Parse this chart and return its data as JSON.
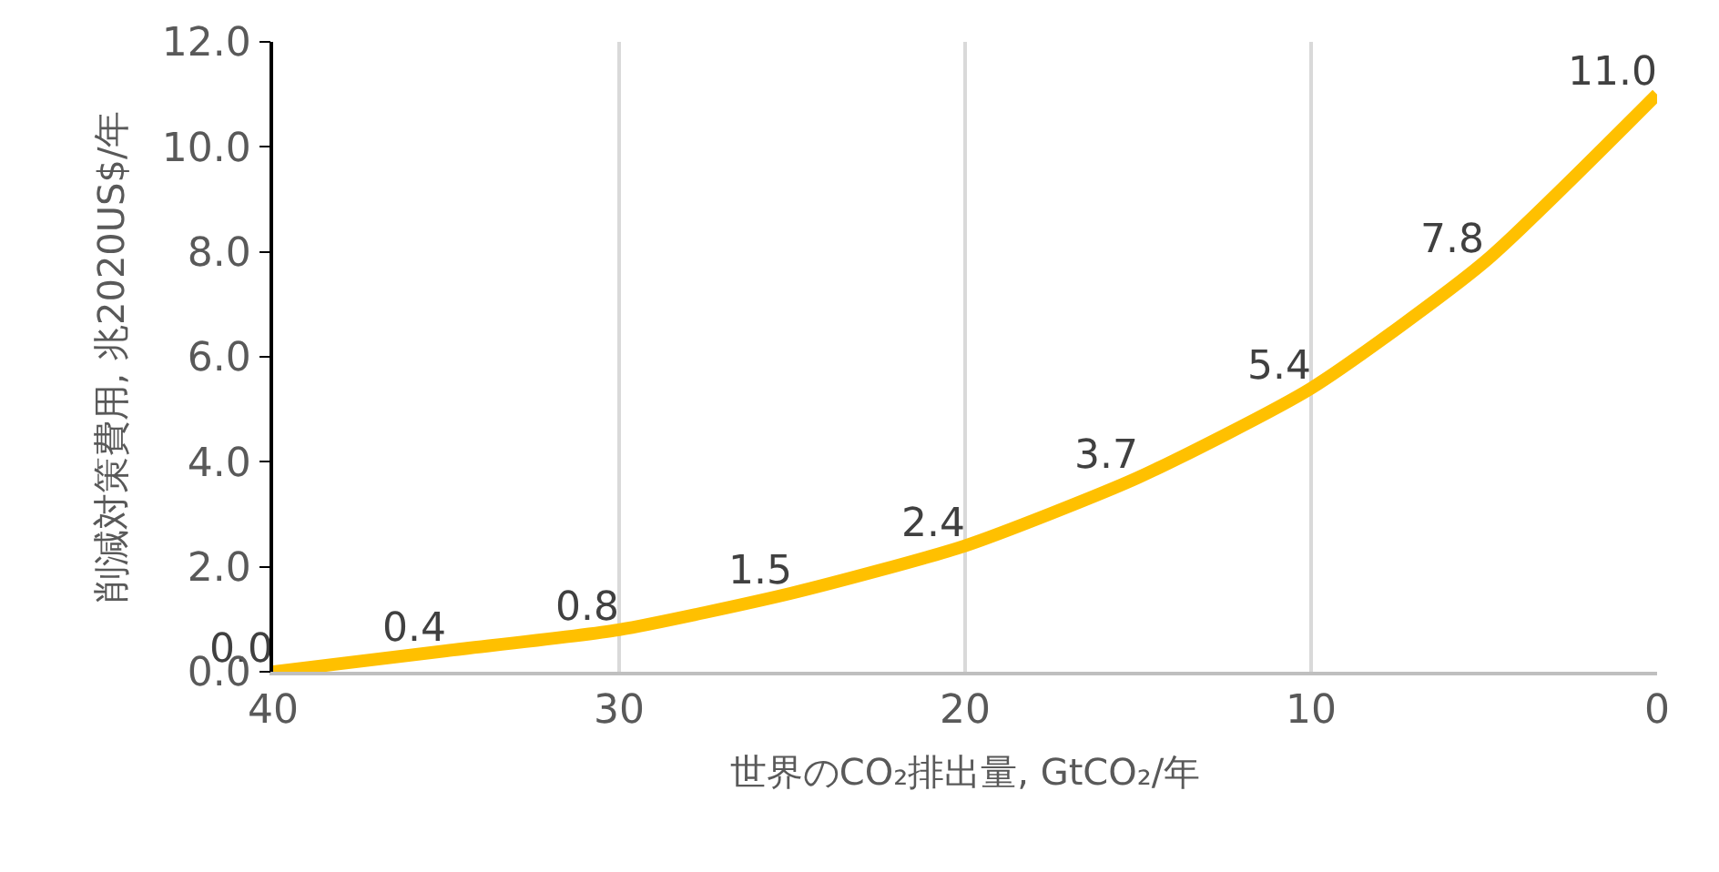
{
  "chart_data": {
    "type": "line",
    "xlabel": "世界のCO₂排出量, GtCO₂/年",
    "ylabel": "削減対策費用, 兆2020US$/年",
    "x": [
      40,
      35,
      30,
      25,
      20,
      15,
      10,
      5,
      0
    ],
    "series": [
      {
        "color": "#ffc000",
        "values": [
          0.0,
          0.4,
          0.8,
          1.5,
          2.4,
          3.7,
          5.4,
          7.8,
          11.0
        ],
        "value_labels": [
          "0.0",
          "0.4",
          "0.8",
          "1.5",
          "2.4",
          "3.7",
          "5.4",
          "7.8",
          "11.0"
        ]
      }
    ],
    "xlim": [
      40,
      0
    ],
    "xticks": [
      40,
      30,
      20,
      10,
      0
    ],
    "ylim": [
      0,
      12
    ],
    "yticks": [
      {
        "value": 0,
        "label": "0.0"
      },
      {
        "value": 2,
        "label": "2.0"
      },
      {
        "value": 4,
        "label": "4.0"
      },
      {
        "value": 6,
        "label": "6.0"
      },
      {
        "value": 8,
        "label": "8.0"
      },
      {
        "value": 10,
        "label": "10.0"
      },
      {
        "value": 12,
        "label": "12.0"
      }
    ],
    "grid": "x",
    "marker": "none",
    "line_style": "solid"
  }
}
